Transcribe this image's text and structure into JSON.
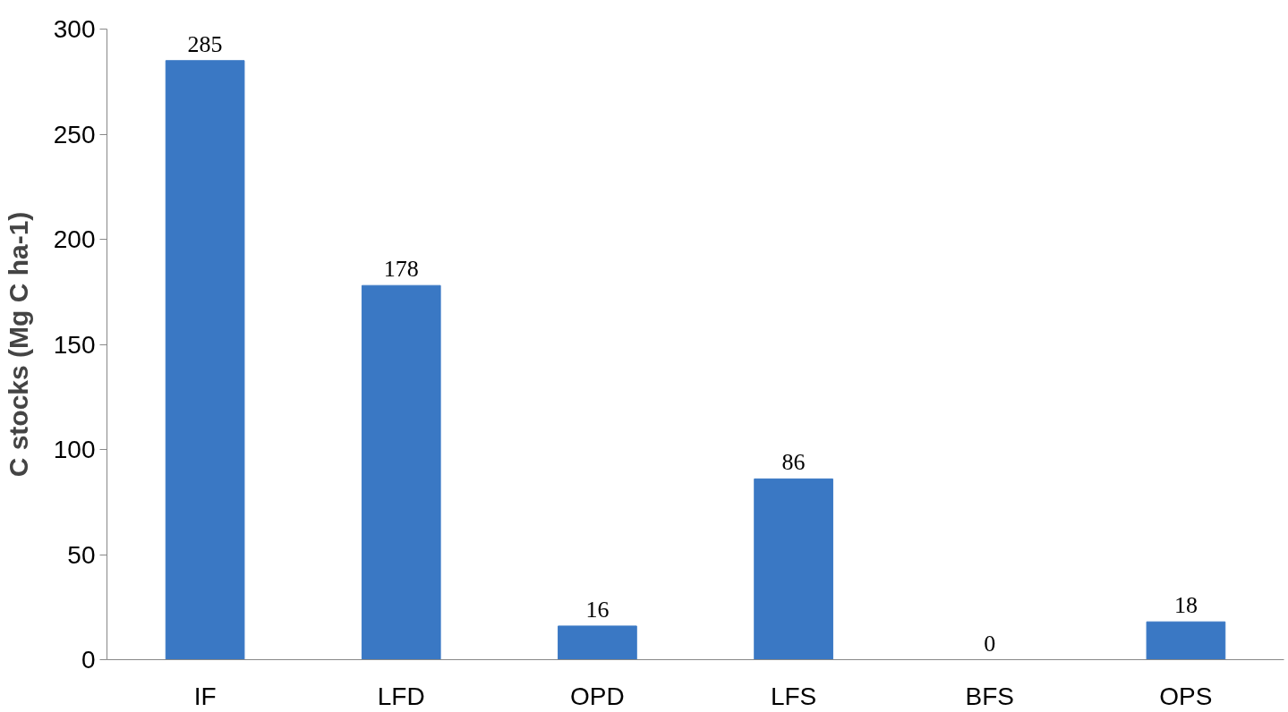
{
  "chart_data": {
    "type": "bar",
    "ylabel": "C stocks (Mg C ha-1)",
    "categories": [
      "IF",
      "LFD",
      "OPD",
      "LFS",
      "BFS",
      "OPS"
    ],
    "values": [
      285,
      178,
      16,
      86,
      0,
      18
    ],
    "color": "#3a78c4",
    "ylim": [
      0,
      300
    ],
    "yticks": [
      0,
      50,
      100,
      150,
      200,
      250,
      300
    ],
    "grid": false,
    "data_labels": true
  }
}
